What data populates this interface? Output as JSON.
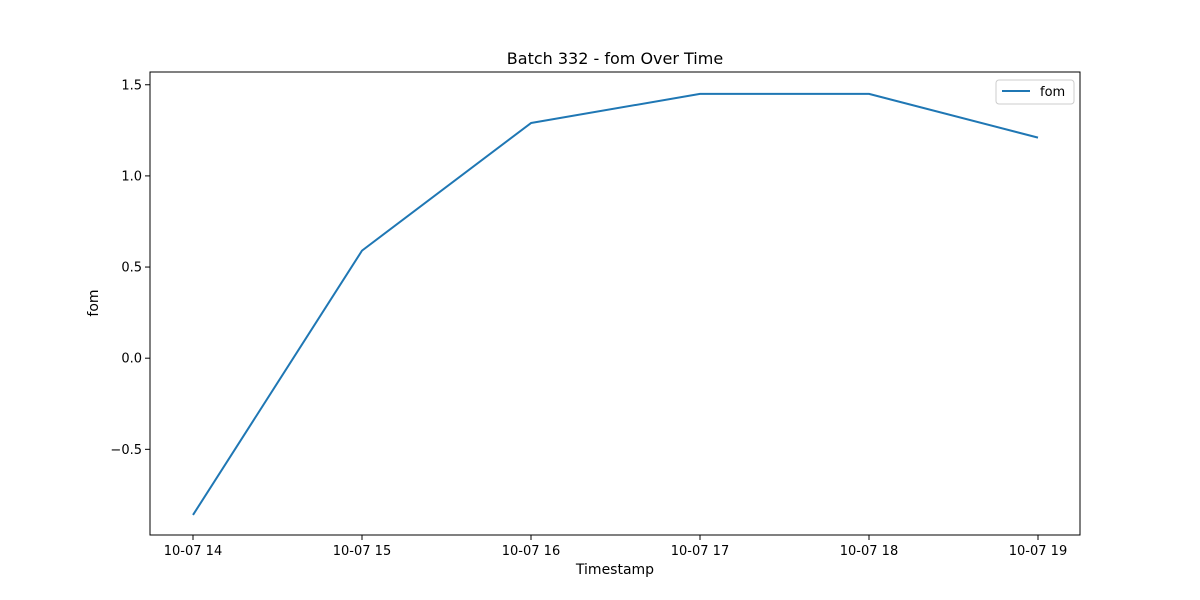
{
  "chart_data": {
    "type": "line",
    "title": "Batch 332 - fom Over Time",
    "xlabel": "Timestamp",
    "ylabel": "fom",
    "x": [
      "10-07 14",
      "10-07 15",
      "10-07 16",
      "10-07 17",
      "10-07 18",
      "10-07 19"
    ],
    "series": [
      {
        "name": "fom",
        "values": [
          -0.86,
          0.59,
          1.29,
          1.45,
          1.45,
          1.21
        ],
        "color": "#1f77b4"
      }
    ],
    "ylim": [
      -0.97,
      1.57
    ],
    "y_ticks": [
      -0.5,
      0.0,
      0.5,
      1.0,
      1.5
    ],
    "y_tick_labels": [
      "−0.5",
      "0.0",
      "0.5",
      "1.0",
      "1.5"
    ],
    "grid": false,
    "legend": "top-right"
  }
}
